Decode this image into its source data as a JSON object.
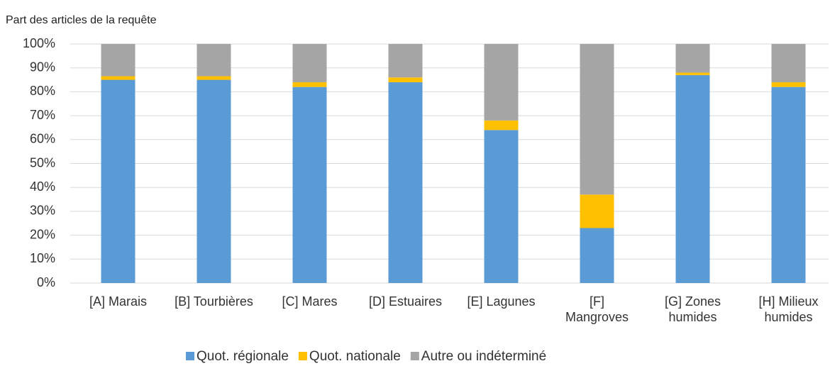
{
  "chart_data": {
    "type": "stacked_bar",
    "title": "Part des articles de la requête",
    "categories": [
      "[A] Marais",
      "[B] Tourbières",
      "[C] Mares",
      "[D] Estuaires",
      "[E] Lagunes",
      "[F] Mangroves",
      "[G] Zones humides",
      "[H] Milieux humides"
    ],
    "series": [
      {
        "name": "Quot. régionale",
        "color": "#5b9bd5",
        "values": [
          85,
          85,
          82,
          84,
          64,
          23,
          87,
          82
        ]
      },
      {
        "name": "Quot. nationale",
        "color": "#ffc000",
        "values": [
          1.5,
          1.5,
          2,
          2,
          4,
          14,
          1,
          2
        ]
      },
      {
        "name": "Autre ou indéterminé",
        "color": "#a5a5a5",
        "values": [
          13.5,
          13.5,
          16,
          14,
          32,
          63,
          12,
          16
        ]
      }
    ],
    "ylim": [
      0,
      100
    ],
    "yticks": [
      {
        "value": 0,
        "label": "0%"
      },
      {
        "value": 10,
        "label": "10%"
      },
      {
        "value": 20,
        "label": "20%"
      },
      {
        "value": 30,
        "label": "30%"
      },
      {
        "value": 40,
        "label": "40%"
      },
      {
        "value": 50,
        "label": "50%"
      },
      {
        "value": 60,
        "label": "60%"
      },
      {
        "value": 70,
        "label": "70%"
      },
      {
        "value": 80,
        "label": "80%"
      },
      {
        "value": 90,
        "label": "90%"
      },
      {
        "value": 100,
        "label": "100%"
      }
    ],
    "grid": true,
    "legend": "bottom"
  }
}
